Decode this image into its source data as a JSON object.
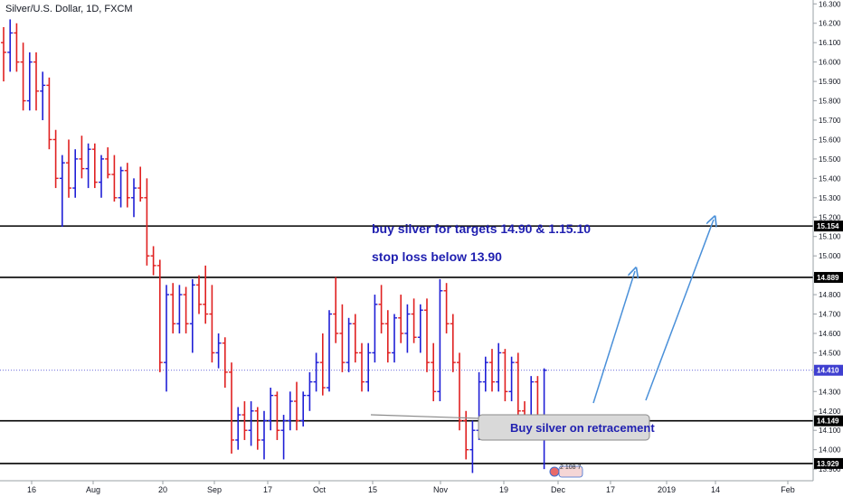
{
  "chart_data": {
    "type": "ohlc",
    "title": "Silver/U.S. Dollar, 1D, FXCM",
    "y_axis": {
      "range": [
        13.84,
        16.32
      ],
      "ticks": [
        "16.300",
        "16.200",
        "16.100",
        "16.000",
        "15.900",
        "15.800",
        "15.700",
        "15.600",
        "15.500",
        "15.400",
        "15.300",
        "15.200",
        "15.100",
        "15.000",
        "14.900",
        "14.800",
        "14.700",
        "14.600",
        "14.500",
        "14.400",
        "14.300",
        "14.200",
        "14.100",
        "14.000",
        "13.900"
      ]
    },
    "x_axis": {
      "ticks": [
        "16",
        "Aug",
        "20",
        "Sep",
        "17",
        "Oct",
        "15",
        "Nov",
        "19",
        "Dec",
        "17",
        "2019",
        "14",
        "Feb"
      ]
    },
    "horizontal_levels": [
      {
        "value": 15.154,
        "label": "15.154"
      },
      {
        "value": 14.889,
        "label": "14.889"
      },
      {
        "value": 14.149,
        "label": "14.149"
      },
      {
        "value": 13.929,
        "label": "13.929"
      }
    ],
    "last_price": {
      "value": 14.41,
      "label": "14.410"
    },
    "annotations": {
      "targets": "buy silver for targets 14.90 & 1.15.10",
      "stop": "stop loss below 13.90",
      "callout": "Buy silver on retracement"
    },
    "watermark_text": "2 108 7",
    "colors": {
      "up": "#1f1fd6",
      "down": "#e02020",
      "arrow": "#4a90d9",
      "level": "#000000",
      "last_price": "#3f3fd0"
    },
    "bars": [
      [
        16.1,
        16.18,
        15.9,
        16.05
      ],
      [
        16.05,
        16.22,
        15.95,
        16.15
      ],
      [
        16.15,
        16.2,
        15.95,
        16.0
      ],
      [
        16.0,
        16.1,
        15.75,
        15.8
      ],
      [
        15.8,
        16.05,
        15.75,
        16.0
      ],
      [
        16.0,
        16.05,
        15.75,
        15.85
      ],
      [
        15.85,
        15.95,
        15.7,
        15.88
      ],
      [
        15.88,
        15.92,
        15.55,
        15.6
      ],
      [
        15.6,
        15.65,
        15.35,
        15.4
      ],
      [
        15.4,
        15.52,
        15.15,
        15.48
      ],
      [
        15.48,
        15.6,
        15.3,
        15.35
      ],
      [
        15.35,
        15.55,
        15.3,
        15.5
      ],
      [
        15.5,
        15.62,
        15.4,
        15.45
      ],
      [
        15.45,
        15.58,
        15.35,
        15.55
      ],
      [
        15.55,
        15.58,
        15.35,
        15.38
      ],
      [
        15.38,
        15.52,
        15.3,
        15.5
      ],
      [
        15.5,
        15.56,
        15.4,
        15.42
      ],
      [
        15.42,
        15.52,
        15.28,
        15.3
      ],
      [
        15.3,
        15.46,
        15.25,
        15.44
      ],
      [
        15.44,
        15.48,
        15.25,
        15.3
      ],
      [
        15.3,
        15.4,
        15.2,
        15.35
      ],
      [
        15.35,
        15.46,
        15.28,
        15.3
      ],
      [
        15.3,
        15.4,
        14.95,
        15.0
      ],
      [
        15.0,
        15.05,
        14.9,
        14.95
      ],
      [
        14.95,
        14.98,
        14.4,
        14.45
      ],
      [
        14.45,
        14.85,
        14.3,
        14.8
      ],
      [
        14.8,
        14.86,
        14.6,
        14.65
      ],
      [
        14.65,
        14.85,
        14.6,
        14.8
      ],
      [
        14.8,
        14.84,
        14.6,
        14.65
      ],
      [
        14.65,
        14.88,
        14.5,
        14.85
      ],
      [
        14.85,
        14.9,
        14.7,
        14.75
      ],
      [
        14.75,
        14.95,
        14.65,
        14.7
      ],
      [
        14.7,
        14.85,
        14.45,
        14.5
      ],
      [
        14.5,
        14.6,
        14.42,
        14.55
      ],
      [
        14.55,
        14.58,
        14.32,
        14.4
      ],
      [
        14.4,
        14.45,
        13.98,
        14.05
      ],
      [
        14.05,
        14.22,
        14.0,
        14.18
      ],
      [
        14.18,
        14.25,
        14.05,
        14.1
      ],
      [
        14.1,
        14.25,
        14.02,
        14.2
      ],
      [
        14.2,
        14.22,
        14.0,
        14.05
      ],
      [
        14.05,
        14.2,
        13.95,
        14.15
      ],
      [
        14.15,
        14.32,
        14.1,
        14.28
      ],
      [
        14.28,
        14.3,
        14.05,
        14.1
      ],
      [
        14.1,
        14.18,
        13.95,
        14.15
      ],
      [
        14.15,
        14.3,
        14.1,
        14.25
      ],
      [
        14.25,
        14.35,
        14.1,
        14.15
      ],
      [
        14.15,
        14.3,
        14.12,
        14.28
      ],
      [
        14.28,
        14.4,
        14.2,
        14.35
      ],
      [
        14.35,
        14.5,
        14.3,
        14.45
      ],
      [
        14.45,
        14.6,
        14.28,
        14.32
      ],
      [
        14.32,
        14.72,
        14.3,
        14.7
      ],
      [
        14.7,
        14.89,
        14.55,
        14.6
      ],
      [
        14.6,
        14.75,
        14.4,
        14.45
      ],
      [
        14.45,
        14.68,
        14.4,
        14.65
      ],
      [
        14.65,
        14.7,
        14.45,
        14.5
      ],
      [
        14.5,
        14.55,
        14.3,
        14.35
      ],
      [
        14.35,
        14.55,
        14.3,
        14.5
      ],
      [
        14.5,
        14.8,
        14.45,
        14.75
      ],
      [
        14.75,
        14.85,
        14.6,
        14.65
      ],
      [
        14.65,
        14.72,
        14.45,
        14.5
      ],
      [
        14.5,
        14.7,
        14.45,
        14.68
      ],
      [
        14.68,
        14.8,
        14.55,
        14.6
      ],
      [
        14.6,
        14.75,
        14.5,
        14.7
      ],
      [
        14.7,
        14.78,
        14.55,
        14.58
      ],
      [
        14.58,
        14.75,
        14.5,
        14.72
      ],
      [
        14.72,
        14.78,
        14.4,
        14.45
      ],
      [
        14.45,
        14.55,
        14.25,
        14.3
      ],
      [
        14.3,
        14.88,
        14.25,
        14.82
      ],
      [
        14.82,
        14.86,
        14.6,
        14.65
      ],
      [
        14.65,
        14.7,
        14.4,
        14.45
      ],
      [
        14.45,
        14.5,
        14.1,
        14.15
      ],
      [
        14.15,
        14.2,
        13.95,
        14.0
      ],
      [
        14.0,
        14.15,
        13.88,
        14.1
      ],
      [
        14.1,
        14.4,
        14.05,
        14.35
      ],
      [
        14.35,
        14.48,
        14.3,
        14.45
      ],
      [
        14.45,
        14.52,
        14.3,
        14.35
      ],
      [
        14.35,
        14.55,
        14.3,
        14.5
      ],
      [
        14.5,
        14.52,
        14.25,
        14.3
      ],
      [
        14.3,
        14.48,
        14.25,
        14.45
      ],
      [
        14.45,
        14.5,
        14.15,
        14.2
      ],
      [
        14.2,
        14.25,
        14.05,
        14.1
      ],
      [
        14.1,
        14.38,
        14.05,
        14.35
      ],
      [
        14.35,
        14.38,
        14.1,
        14.15
      ],
      [
        14.15,
        14.42,
        13.9,
        14.41
      ]
    ]
  }
}
